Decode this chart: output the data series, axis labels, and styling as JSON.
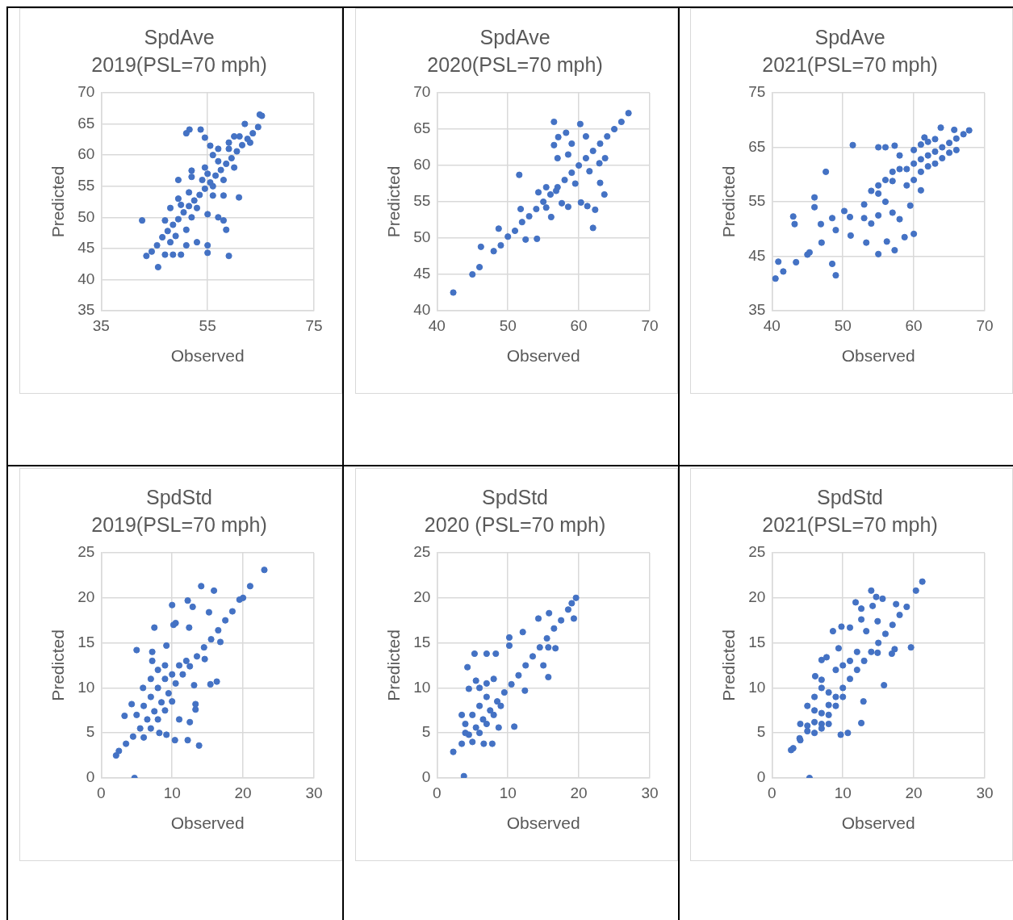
{
  "chart_data": [
    {
      "type": "scatter",
      "title": "SpdAve",
      "subtitle": "2019(PSL=70 mph)",
      "xlabel": "Observed",
      "ylabel": "Predicted",
      "color": "#4472c4",
      "marker": "circle",
      "grid": true,
      "xlim": [
        35,
        75
      ],
      "xticks": [
        35,
        55,
        75
      ],
      "ylim": [
        35,
        70
      ],
      "yticks": [
        35,
        40,
        45,
        50,
        55,
        60,
        65,
        70
      ],
      "x": [
        43.5,
        44.5,
        45.5,
        46.5,
        47.5,
        48.5,
        49.5,
        50.5,
        51.5,
        52.5,
        53.5,
        54.5,
        55.5,
        56.5,
        57.5,
        58.5,
        59.5,
        60.5,
        61.5,
        62.5,
        63.5,
        64.5,
        65.2,
        64.8,
        62,
        60,
        59,
        57,
        56,
        58,
        60,
        61,
        63,
        55,
        54,
        56,
        42.7,
        45.7,
        47,
        48.5,
        50,
        51,
        53,
        55,
        55,
        59,
        57,
        58,
        58.5,
        60.9,
        58,
        56,
        51,
        51.6,
        53.7,
        54.5,
        52,
        52,
        50,
        49.5,
        52,
        55,
        53,
        48,
        47,
        49,
        48,
        51,
        49.5,
        51.5,
        54.5,
        59,
        57,
        55.5
      ],
      "values": [
        43.8,
        44.5,
        45.5,
        46.8,
        47.8,
        48.8,
        49.7,
        50.8,
        51.8,
        52.7,
        53.6,
        54.6,
        55.6,
        56.7,
        57.6,
        58.6,
        59.5,
        60.6,
        61.6,
        62.6,
        63.5,
        64.5,
        66.3,
        66.5,
        65,
        63,
        61,
        59,
        60,
        56,
        58,
        63,
        62,
        57,
        56,
        55,
        49.5,
        42,
        44,
        44,
        44,
        45.5,
        46,
        45.5,
        44.3,
        43.8,
        50,
        49.5,
        48,
        53.2,
        53.5,
        53.5,
        63.5,
        64.1,
        64.1,
        62.8,
        57.5,
        56.5,
        52,
        53,
        50,
        50.5,
        51.5,
        51.5,
        49.5,
        47,
        46,
        48,
        56,
        54,
        58,
        62,
        61,
        61.5
      ]
    },
    {
      "type": "scatter",
      "title": "SpdAve",
      "subtitle": "2020(PSL=70 mph)",
      "xlabel": "Observed",
      "ylabel": "Predicted",
      "color": "#4472c4",
      "marker": "circle",
      "grid": true,
      "xlim": [
        40,
        70
      ],
      "xticks": [
        40,
        50,
        60,
        70
      ],
      "ylim": [
        40,
        70
      ],
      "yticks": [
        40,
        45,
        50,
        55,
        60,
        65,
        70
      ],
      "x": [
        42.3,
        45,
        46,
        48,
        49,
        50,
        51,
        52,
        53,
        54,
        55,
        56,
        57,
        58,
        59,
        60,
        61,
        62,
        63,
        64,
        65,
        66,
        67,
        46.2,
        48.7,
        51.6,
        56.5,
        60.2,
        62,
        63.6,
        63,
        56.1,
        52.5,
        54.1,
        57.6,
        58.5,
        60.3,
        61.2,
        62.3,
        57.1,
        56.5,
        58.2,
        61,
        54.3,
        55.4,
        51.8,
        55.4,
        56.8,
        59.5,
        62.9,
        63.7,
        61.5,
        58.5,
        57,
        59
      ],
      "values": [
        42.5,
        45,
        46,
        48.2,
        49,
        50.2,
        51,
        52.2,
        53,
        54,
        55,
        56,
        57,
        58,
        59,
        60,
        61,
        62,
        63,
        64,
        65,
        66,
        67.2,
        48.8,
        51.3,
        58.7,
        66,
        65.7,
        51.4,
        56,
        57.6,
        52.9,
        49.8,
        49.9,
        54.8,
        54.3,
        54.9,
        54.4,
        53.9,
        63.9,
        62.8,
        64.5,
        64,
        56.3,
        57,
        54,
        54.2,
        56.5,
        57.5,
        60.3,
        61,
        59.2,
        61.5,
        61,
        63
      ]
    },
    {
      "type": "scatter",
      "title": "SpdAve",
      "subtitle": "2021(PSL=70 mph)",
      "xlabel": "Observed",
      "ylabel": "Predicted",
      "color": "#4472c4",
      "marker": "circle",
      "grid": true,
      "xlim": [
        40,
        70
      ],
      "xticks": [
        40,
        50,
        60,
        70
      ],
      "ylim": [
        35,
        75
      ],
      "yticks": [
        35,
        45,
        55,
        65,
        75
      ],
      "x": [
        45,
        47,
        49,
        51,
        53,
        55,
        57,
        59,
        60,
        61,
        62,
        63,
        64,
        65,
        66,
        67,
        67.8,
        40.5,
        40.9,
        41.6,
        43.4,
        45.3,
        43,
        43.2,
        46,
        46,
        47.6,
        48.5,
        49,
        51.4,
        55,
        57.3,
        60,
        63.8,
        65.7,
        55,
        56,
        57.3,
        46.9,
        48.5,
        51.1,
        53.3,
        56.2,
        58.7,
        58,
        59.5,
        61,
        50.2,
        58,
        60,
        61,
        62,
        60,
        61,
        62,
        63,
        64,
        59,
        57,
        56,
        55,
        58,
        54,
        53,
        54,
        56,
        57,
        55,
        65,
        66,
        63,
        61.5
      ],
      "values": [
        45.3,
        47.5,
        49.8,
        52.2,
        54.5,
        56.5,
        58.8,
        61,
        62,
        62.8,
        63.5,
        64.2,
        65,
        65.8,
        66.6,
        67.4,
        68.1,
        40.9,
        44,
        42.2,
        43.9,
        45.7,
        52.3,
        50.9,
        55.8,
        54,
        60.5,
        43.6,
        41.5,
        65.4,
        45.4,
        46.1,
        49.1,
        68.6,
        68.2,
        65,
        65,
        65.3,
        50.9,
        52,
        48.8,
        47.5,
        47.7,
        48.5,
        51.8,
        54.3,
        57.1,
        53.3,
        63.5,
        64.5,
        65.5,
        66,
        59,
        60.5,
        61.5,
        62,
        63,
        58,
        60.5,
        59,
        58,
        61,
        57,
        52,
        51,
        55,
        53,
        52.5,
        64,
        64.5,
        66.5,
        66.8
      ]
    },
    {
      "type": "scatter",
      "title": "SpdStd",
      "subtitle": "2019(PSL=70 mph)",
      "xlabel": "Observed",
      "ylabel": "Predicted",
      "color": "#4472c4",
      "marker": "circle",
      "grid": true,
      "xlim": [
        0,
        30
      ],
      "xticks": [
        0,
        10,
        20,
        30
      ],
      "ylim": [
        0,
        25
      ],
      "yticks": [
        0,
        5,
        10,
        15,
        20,
        25
      ],
      "x": [
        23,
        21,
        19.5,
        14.1,
        15.9,
        10,
        12.2,
        12.9,
        15.2,
        7.5,
        10.5,
        12.4,
        5,
        7.2,
        16.8,
        15.4,
        16.3,
        4.7,
        13.8,
        12.2,
        10.4,
        8.2,
        9.2,
        12.5,
        11,
        13.3,
        13.3,
        13.1,
        4.3,
        3.3,
        2.1,
        7.2,
        9.2,
        10.2,
        5.9,
        14.6,
        2.5,
        3.5,
        4.5,
        5.5,
        6.5,
        7.5,
        8.5,
        9.5,
        10.5,
        11.5,
        12.5,
        13.5,
        14.5,
        15.5,
        16.5,
        17.5,
        18.5,
        20,
        5,
        6,
        7,
        8,
        9,
        6,
        7,
        8,
        9,
        10,
        11,
        12,
        8,
        9,
        7,
        10
      ],
      "values": [
        23.1,
        21.3,
        19.8,
        21.3,
        20.8,
        19.2,
        19.7,
        19,
        18.4,
        16.7,
        17.2,
        16.7,
        14.2,
        14,
        15.1,
        10.4,
        10.7,
        0,
        3.6,
        4.2,
        4.2,
        5,
        4.8,
        6.2,
        6.5,
        7.6,
        8.2,
        10.3,
        8.2,
        6.9,
        2.5,
        13,
        14.7,
        17,
        10,
        13.2,
        3,
        3.8,
        4.6,
        5.5,
        6.5,
        7.4,
        8.4,
        9.4,
        10.5,
        11.5,
        12.4,
        13.5,
        14.5,
        15.4,
        16.4,
        17.5,
        18.5,
        20,
        7,
        8,
        9,
        10,
        11,
        4.5,
        5.5,
        6.5,
        7.5,
        8.5,
        12.5,
        13,
        12,
        12.5,
        11,
        11.5
      ]
    },
    {
      "type": "scatter",
      "title": "SpdStd",
      "subtitle": "2020 (PSL=70 mph)",
      "xlabel": "Observed",
      "ylabel": "Predicted",
      "color": "#4472c4",
      "marker": "circle",
      "grid": true,
      "xlim": [
        0,
        30
      ],
      "xticks": [
        0,
        10,
        20,
        30
      ],
      "ylim": [
        0,
        25
      ],
      "yticks": [
        0,
        5,
        10,
        15,
        20,
        25
      ],
      "x": [
        3.8,
        2.3,
        19.6,
        19,
        19.3,
        15.8,
        14.3,
        12.1,
        10.2,
        10.2,
        5.3,
        7,
        8.3,
        4.3,
        15.7,
        16.7,
        15,
        15.7,
        12.4,
        4.5,
        5.5,
        10.9,
        8.7,
        7.8,
        6.6,
        3.5,
        3.5,
        4.5,
        5.5,
        6.5,
        7.5,
        8.5,
        9.5,
        10.5,
        11.5,
        12.5,
        13.5,
        14.5,
        15.5,
        16.5,
        17.5,
        18.5,
        4,
        5,
        6,
        7,
        5,
        6,
        7,
        8,
        9,
        4,
        6,
        7,
        8
      ],
      "values": [
        0.2,
        2.9,
        20,
        19.4,
        17.7,
        18.3,
        17.7,
        16.2,
        15.6,
        14.7,
        13.8,
        13.8,
        13.8,
        12.3,
        14.5,
        14.4,
        12.5,
        11.2,
        9.7,
        9.9,
        10.8,
        5.7,
        5.6,
        3.8,
        3.8,
        7,
        3.8,
        4.8,
        5.6,
        6.5,
        7.5,
        8.5,
        9.5,
        10.4,
        11.4,
        12.5,
        13.5,
        14.5,
        15.5,
        16.6,
        17.5,
        18.7,
        6,
        7,
        8,
        9,
        4,
        5,
        6,
        7,
        8,
        5,
        10,
        10.5,
        11
      ]
    },
    {
      "type": "scatter",
      "title": "SpdStd",
      "subtitle": "2021(PSL=70 mph)",
      "xlabel": "Observed",
      "ylabel": "Predicted",
      "color": "#4472c4",
      "marker": "circle",
      "grid": true,
      "xlim": [
        0,
        30
      ],
      "xticks": [
        0,
        10,
        20,
        30
      ],
      "ylim": [
        0,
        25
      ],
      "yticks": [
        0,
        5,
        10,
        15,
        20,
        25
      ],
      "x": [
        5.3,
        2.7,
        21.2,
        20.3,
        19.6,
        14,
        14.7,
        15.6,
        11.8,
        12.6,
        14.2,
        17.5,
        8.6,
        9.8,
        11,
        12.6,
        13.3,
        14.9,
        16.9,
        17.3,
        14.9,
        15.8,
        12.6,
        12.9,
        10.7,
        9.7,
        6.1,
        7,
        7.7,
        9.4,
        7,
        3.9,
        3,
        4,
        5,
        6,
        7,
        8,
        9,
        10,
        11,
        12,
        13,
        14,
        15,
        16,
        17,
        18,
        19,
        5,
        6,
        7,
        8,
        4,
        5,
        6,
        7,
        8,
        9,
        10,
        6,
        7,
        8,
        9,
        10,
        11,
        12
      ],
      "values": [
        0,
        3.1,
        21.8,
        20.8,
        14.5,
        20.8,
        20.1,
        19.9,
        19.5,
        18.8,
        19.1,
        19.3,
        16.3,
        16.8,
        16.7,
        17.6,
        16.3,
        17.4,
        13.8,
        14.3,
        13.9,
        10.3,
        6.1,
        8.5,
        5,
        4.8,
        11.3,
        13.1,
        13.4,
        14.4,
        10.9,
        4.4,
        3.3,
        4.2,
        5.2,
        6.2,
        7.2,
        8.1,
        9,
        10,
        11,
        12,
        13,
        14,
        15,
        16,
        17,
        18.1,
        19,
        8,
        9,
        10,
        9.5,
        6,
        5.8,
        7.5,
        6,
        7,
        8,
        9,
        5,
        5.5,
        6,
        12,
        12.5,
        13,
        14
      ]
    }
  ]
}
